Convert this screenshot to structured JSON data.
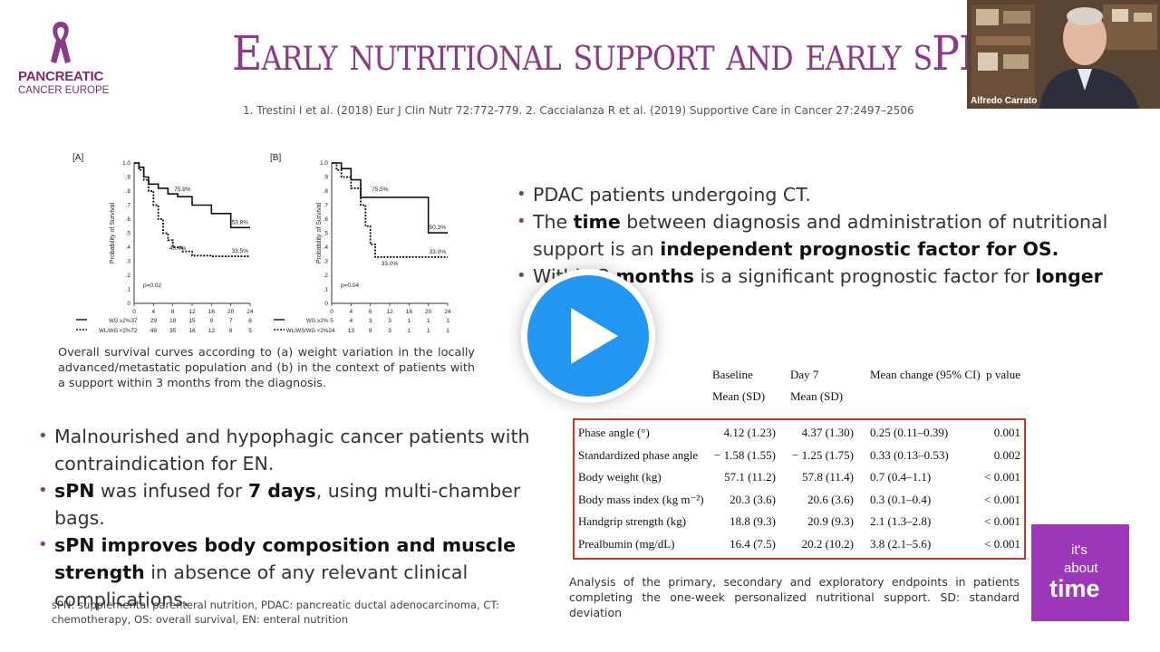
{
  "logo": {
    "line1": "PANCREATIC",
    "line2": "CANCER EUROPE"
  },
  "slide_title": "Early nutritional support and early sPN",
  "references": "1. Trestini I et al. (2018) Eur J Clin Nutr 72:772-779. 2. Caccialanza R et al. (2019) Supportive Care in Cancer 27:2497–2506",
  "webcam": {
    "speaker_name": "Alfredo Carrato"
  },
  "chart_data": [
    {
      "type": "line",
      "panel": "[A]",
      "ylabel": "Probability of Survival",
      "xticks": [
        0,
        4,
        8,
        12,
        16,
        20,
        24
      ],
      "yticks": [
        "1.0",
        ".9",
        ".8",
        ".7",
        ".6",
        ".5",
        ".4",
        ".3",
        ".2",
        ".1",
        "0"
      ],
      "ylim": [
        0,
        1
      ],
      "xlim": [
        0,
        24
      ],
      "p_value": "p=0.02",
      "series": [
        {
          "name": "WG ≥2%",
          "style": "solid",
          "x": [
            0,
            1,
            2,
            3,
            5,
            7,
            9,
            12,
            16,
            20,
            24
          ],
          "y": [
            1.0,
            0.97,
            0.9,
            0.85,
            0.82,
            0.78,
            0.76,
            0.7,
            0.64,
            0.54,
            0.54
          ],
          "end_label": "53.8%",
          "mid_label": "75.9%"
        },
        {
          "name": "WL/WG <2%",
          "style": "dotted",
          "x": [
            0,
            1,
            2,
            3,
            4,
            5,
            6,
            7,
            8,
            10,
            12,
            16,
            20,
            24
          ],
          "y": [
            1.0,
            0.95,
            0.88,
            0.8,
            0.7,
            0.6,
            0.5,
            0.45,
            0.4,
            0.37,
            0.34,
            0.335,
            0.335,
            0.335
          ],
          "end_label": "33.5%",
          "mid_label": "40.4%"
        }
      ],
      "risk_table": [
        {
          "label": "WG ≥2%",
          "counts": [
            "37",
            "29",
            "18",
            "15",
            "9",
            "7",
            "8"
          ]
        },
        {
          "label": "WL/WG <2%",
          "counts": [
            "72",
            "49",
            "35",
            "16",
            "12",
            "8",
            "5"
          ]
        }
      ]
    },
    {
      "type": "line",
      "panel": "[B]",
      "ylabel": "Probability of Survival",
      "xticks": [
        0,
        4,
        8,
        12,
        16,
        20,
        24
      ],
      "yticks": [
        "1.0",
        ".9",
        ".8",
        ".7",
        ".6",
        ".5",
        ".4",
        ".3",
        ".2",
        ".1",
        "0"
      ],
      "ylim": [
        0,
        1
      ],
      "xlim": [
        0,
        24
      ],
      "p_value": "p=0.04",
      "series": [
        {
          "name": "WG ≥2%",
          "style": "solid",
          "x": [
            0,
            2,
            4,
            6,
            20,
            24
          ],
          "y": [
            1.0,
            0.96,
            0.88,
            0.755,
            0.503,
            0.503
          ],
          "end_label": "50.3%",
          "mid_label": "75.5%"
        },
        {
          "name": "WL/WS/WG <2%",
          "style": "dotted",
          "x": [
            0,
            1,
            2,
            4,
            6,
            7,
            8,
            9,
            12,
            24
          ],
          "y": [
            1.0,
            0.95,
            0.9,
            0.82,
            0.7,
            0.55,
            0.42,
            0.33,
            0.33,
            0.33
          ],
          "end_label": "33.0%",
          "mid_label": "33.0%"
        }
      ],
      "risk_table": [
        {
          "label": "WG ≥2%",
          "counts": [
            "5",
            "4",
            "3",
            "3",
            "1",
            "1",
            "1"
          ]
        },
        {
          "label": "WL/WS/WG <2%",
          "counts": [
            "24",
            "13",
            "9",
            "3",
            "1",
            "1",
            "1"
          ]
        }
      ]
    }
  ],
  "figure_caption": "Overall survival curves according to (a) weight variation in the locally advanced/metastatic population and (b) in the context of patients with a support within 3 months from the diagnosis.",
  "right_bullets": [
    {
      "parts": [
        {
          "t": "PDAC patients undergoing CT.",
          "b": false
        }
      ]
    },
    {
      "parts": [
        {
          "t": "The ",
          "b": false
        },
        {
          "t": "time",
          "b": true
        },
        {
          "t": " between diagnosis and administration of nutritional support is an ",
          "b": false
        },
        {
          "t": "independent prognostic factor for OS.",
          "b": true
        }
      ]
    },
    {
      "parts": [
        {
          "t": "Within 3 ",
          "b": false
        },
        {
          "t": "months",
          "b": true
        },
        {
          "t": " is a significant prognostic factor for ",
          "b": false
        },
        {
          "t": "longer OS.",
          "b": true
        }
      ]
    }
  ],
  "left_bullets": [
    {
      "parts": [
        {
          "t": "Malnourished and hypophagic cancer patients with contraindication for EN.",
          "b": false
        }
      ]
    },
    {
      "parts": [
        {
          "t": "sPN",
          "b": true
        },
        {
          "t": " was infused for ",
          "b": false
        },
        {
          "t": "7 days",
          "b": true
        },
        {
          "t": ", using multi-chamber bags.",
          "b": false
        }
      ]
    },
    {
      "parts": [
        {
          "t": "sPN improves body composition and muscle strength",
          "b": true
        },
        {
          "t": " in absence of any relevant clinical complications.",
          "b": false
        }
      ]
    }
  ],
  "table": {
    "headers": [
      {
        "line1": "",
        "line2": ""
      },
      {
        "line1": "Baseline",
        "line2": "Mean (SD)"
      },
      {
        "line1": "Day 7",
        "line2": "Mean (SD)"
      },
      {
        "line1": "Mean change (95% CI)",
        "line2": ""
      },
      {
        "line1": "p value",
        "line2": ""
      }
    ],
    "rows": [
      [
        "Phase angle (°)",
        "4.12 (1.23)",
        "4.37 (1.30)",
        "0.25 (0.11–0.39)",
        "0.001"
      ],
      [
        "Standardized phase angle",
        "− 1.58 (1.55)",
        "− 1.25 (1.75)",
        "0.33 (0.13–0.53)",
        "0.002"
      ],
      [
        "Body weight (kg)",
        "57.1 (11.2)",
        "57.8 (11.4)",
        "0.7 (0.4–1.1)",
        "< 0.001"
      ],
      [
        "Body mass index (kg m⁻²)",
        "20.3 (3.6)",
        "20.6 (3.6)",
        "0.3 (0.1–0.4)",
        "< 0.001"
      ],
      [
        "Handgrip strength (kg)",
        "18.8 (9.3)",
        "20.9 (9.3)",
        "2.1 (1.3–2.8)",
        "< 0.001"
      ],
      [
        "Prealbumin (mg/dL)",
        "16.4 (7.5)",
        "20.2 (10.2)",
        "3.8 (2.1–5.6)",
        "< 0.001"
      ]
    ]
  },
  "table_caption": "Analysis of the primary, secondary and exploratory endpoints in patients completing the one-week personalized nutritional support. SD: standard deviation",
  "footnote": "sPN: supplemental parenteral nutrition, PDAC: pancreatic ductal adenocarcinoma, CT: chemotherapy, OS: overall survival, EN: enteral nutrition",
  "badge": {
    "line1": "it's",
    "line2": "about",
    "line3": "time"
  },
  "play_button": {
    "icon": "play-icon"
  },
  "colors": {
    "accent": "#8a3a86",
    "play": "#2196f3",
    "badge": "#9b37b8",
    "table_border": "#c0392b"
  }
}
